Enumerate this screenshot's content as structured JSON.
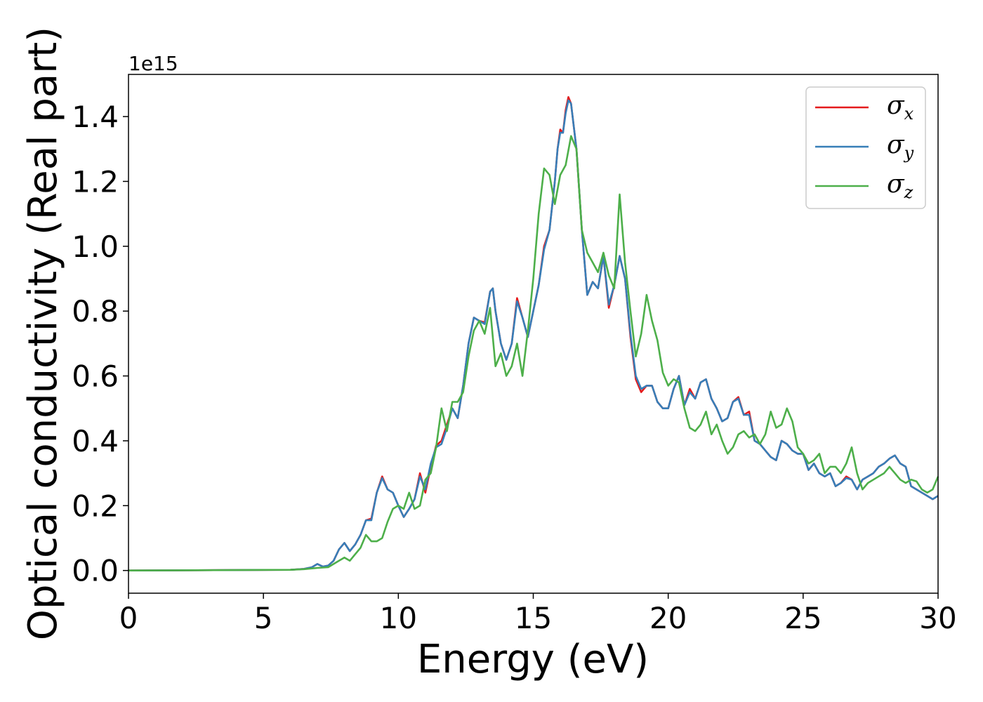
{
  "chart_data": {
    "type": "line",
    "xlabel": "Energy (eV)",
    "ylabel": "Optical conductivity (Real part)",
    "y_offset_label": "1e15",
    "xlim": [
      0,
      30
    ],
    "ylim": [
      -0.07,
      1.53
    ],
    "x_ticks": [
      0,
      5,
      10,
      15,
      20,
      25,
      30
    ],
    "x_tick_labels": [
      "0",
      "5",
      "10",
      "15",
      "20",
      "25",
      "30"
    ],
    "y_ticks": [
      0.0,
      0.2,
      0.4,
      0.6,
      0.8,
      1.0,
      1.2,
      1.4
    ],
    "y_tick_labels": [
      "0.0",
      "0.2",
      "0.4",
      "0.6",
      "0.8",
      "1.0",
      "1.2",
      "1.4"
    ],
    "grid": false,
    "legend": {
      "placement": "top-right",
      "entries": [
        {
          "symbol": "σ",
          "sub": "x",
          "color": "#e41a1c"
        },
        {
          "symbol": "σ",
          "sub": "y",
          "color": "#377eb8"
        },
        {
          "symbol": "σ",
          "sub": "z",
          "color": "#4daf4a"
        }
      ]
    },
    "series": [
      {
        "color": "#e41a1c",
        "x": [
          0,
          6,
          6.5,
          6.8,
          7.0,
          7.2,
          7.4,
          7.6,
          7.8,
          8.0,
          8.2,
          8.4,
          8.6,
          8.8,
          9.0,
          9.2,
          9.4,
          9.6,
          9.8,
          10.0,
          10.2,
          10.4,
          10.6,
          10.8,
          11.0,
          11.2,
          11.4,
          11.6,
          11.8,
          12.0,
          12.2,
          12.4,
          12.6,
          12.8,
          13.0,
          13.2,
          13.4,
          13.5,
          13.6,
          13.8,
          14.0,
          14.2,
          14.4,
          14.6,
          14.8,
          15.0,
          15.2,
          15.4,
          15.6,
          15.8,
          15.9,
          16.0,
          16.1,
          16.2,
          16.3,
          16.4,
          16.6,
          16.8,
          17.0,
          17.2,
          17.4,
          17.6,
          17.8,
          18.0,
          18.2,
          18.4,
          18.6,
          18.8,
          19.0,
          19.2,
          19.4,
          19.6,
          19.8,
          20.0,
          20.2,
          20.4,
          20.6,
          20.8,
          21.0,
          21.2,
          21.4,
          21.6,
          21.8,
          22.0,
          22.2,
          22.4,
          22.6,
          22.8,
          23.0,
          23.2,
          23.4,
          23.6,
          23.8,
          24.0,
          24.2,
          24.4,
          24.6,
          24.8,
          25.0,
          25.2,
          25.4,
          25.6,
          25.8,
          26.0,
          26.2,
          26.4,
          26.6,
          26.8,
          27.0,
          27.2,
          27.4,
          27.6,
          27.8,
          28.0,
          28.2,
          28.4,
          28.6,
          28.8,
          29.0,
          29.2,
          29.4,
          29.6,
          29.8,
          30.0
        ],
        "y": [
          0.0,
          0.002,
          0.005,
          0.01,
          0.02,
          0.012,
          0.015,
          0.03,
          0.065,
          0.085,
          0.06,
          0.08,
          0.11,
          0.155,
          0.16,
          0.24,
          0.29,
          0.25,
          0.24,
          0.2,
          0.165,
          0.19,
          0.22,
          0.3,
          0.24,
          0.32,
          0.385,
          0.4,
          0.45,
          0.5,
          0.47,
          0.57,
          0.7,
          0.78,
          0.77,
          0.765,
          0.86,
          0.87,
          0.8,
          0.7,
          0.65,
          0.7,
          0.84,
          0.78,
          0.72,
          0.8,
          0.88,
          1.0,
          1.05,
          1.2,
          1.3,
          1.36,
          1.35,
          1.42,
          1.46,
          1.44,
          1.3,
          1.05,
          0.85,
          0.89,
          0.87,
          0.97,
          0.81,
          0.88,
          0.97,
          0.9,
          0.72,
          0.59,
          0.55,
          0.57,
          0.57,
          0.52,
          0.5,
          0.5,
          0.56,
          0.6,
          0.51,
          0.56,
          0.53,
          0.58,
          0.59,
          0.53,
          0.5,
          0.46,
          0.47,
          0.52,
          0.535,
          0.48,
          0.49,
          0.4,
          0.39,
          0.37,
          0.35,
          0.34,
          0.4,
          0.39,
          0.37,
          0.36,
          0.36,
          0.31,
          0.33,
          0.3,
          0.29,
          0.3,
          0.26,
          0.27,
          0.29,
          0.28,
          0.25,
          0.28,
          0.29,
          0.3,
          0.32,
          0.33,
          0.345,
          0.355,
          0.33,
          0.32,
          0.26,
          0.25,
          0.24,
          0.23,
          0.22,
          0.23
        ]
      },
      {
        "color": "#377eb8",
        "x": [
          0,
          6,
          6.5,
          6.8,
          7.0,
          7.2,
          7.4,
          7.6,
          7.8,
          8.0,
          8.2,
          8.4,
          8.6,
          8.8,
          9.0,
          9.2,
          9.4,
          9.6,
          9.8,
          10.0,
          10.2,
          10.4,
          10.6,
          10.8,
          11.0,
          11.2,
          11.4,
          11.6,
          11.8,
          12.0,
          12.2,
          12.4,
          12.6,
          12.8,
          13.0,
          13.2,
          13.4,
          13.5,
          13.6,
          13.8,
          14.0,
          14.2,
          14.4,
          14.6,
          14.8,
          15.0,
          15.2,
          15.4,
          15.6,
          15.8,
          15.9,
          16.0,
          16.1,
          16.2,
          16.3,
          16.4,
          16.6,
          16.8,
          17.0,
          17.2,
          17.4,
          17.6,
          17.8,
          18.0,
          18.2,
          18.4,
          18.6,
          18.8,
          19.0,
          19.2,
          19.4,
          19.6,
          19.8,
          20.0,
          20.2,
          20.4,
          20.6,
          20.8,
          21.0,
          21.2,
          21.4,
          21.6,
          21.8,
          22.0,
          22.2,
          22.4,
          22.6,
          22.8,
          23.0,
          23.2,
          23.4,
          23.6,
          23.8,
          24.0,
          24.2,
          24.4,
          24.6,
          24.8,
          25.0,
          25.2,
          25.4,
          25.6,
          25.8,
          26.0,
          26.2,
          26.4,
          26.6,
          26.8,
          27.0,
          27.2,
          27.4,
          27.6,
          27.8,
          28.0,
          28.2,
          28.4,
          28.6,
          28.8,
          29.0,
          29.2,
          29.4,
          29.6,
          29.8,
          30.0
        ],
        "y": [
          0.0,
          0.002,
          0.005,
          0.01,
          0.02,
          0.012,
          0.015,
          0.03,
          0.065,
          0.085,
          0.06,
          0.08,
          0.11,
          0.155,
          0.155,
          0.24,
          0.285,
          0.25,
          0.24,
          0.2,
          0.165,
          0.19,
          0.22,
          0.29,
          0.25,
          0.33,
          0.38,
          0.39,
          0.44,
          0.5,
          0.47,
          0.57,
          0.7,
          0.78,
          0.77,
          0.76,
          0.86,
          0.87,
          0.8,
          0.7,
          0.65,
          0.7,
          0.83,
          0.78,
          0.72,
          0.8,
          0.88,
          0.99,
          1.05,
          1.2,
          1.3,
          1.35,
          1.35,
          1.41,
          1.45,
          1.44,
          1.3,
          1.05,
          0.85,
          0.89,
          0.87,
          0.97,
          0.82,
          0.88,
          0.97,
          0.9,
          0.73,
          0.6,
          0.56,
          0.57,
          0.57,
          0.52,
          0.5,
          0.5,
          0.56,
          0.6,
          0.51,
          0.55,
          0.53,
          0.58,
          0.59,
          0.53,
          0.5,
          0.46,
          0.47,
          0.52,
          0.53,
          0.48,
          0.48,
          0.4,
          0.39,
          0.37,
          0.35,
          0.34,
          0.4,
          0.39,
          0.37,
          0.36,
          0.36,
          0.31,
          0.33,
          0.3,
          0.29,
          0.3,
          0.26,
          0.27,
          0.285,
          0.28,
          0.25,
          0.28,
          0.29,
          0.3,
          0.32,
          0.33,
          0.345,
          0.355,
          0.33,
          0.32,
          0.26,
          0.25,
          0.24,
          0.23,
          0.22,
          0.23
        ]
      },
      {
        "color": "#4daf4a",
        "x": [
          0,
          6,
          6.5,
          7.0,
          7.4,
          7.8,
          8.0,
          8.2,
          8.4,
          8.6,
          8.8,
          9.0,
          9.2,
          9.4,
          9.6,
          9.8,
          10.0,
          10.2,
          10.4,
          10.6,
          10.8,
          11.0,
          11.2,
          11.4,
          11.6,
          11.8,
          12.0,
          12.2,
          12.4,
          12.6,
          12.8,
          13.0,
          13.2,
          13.4,
          13.6,
          13.8,
          14.0,
          14.2,
          14.4,
          14.6,
          14.8,
          15.0,
          15.2,
          15.4,
          15.6,
          15.8,
          16.0,
          16.2,
          16.4,
          16.6,
          16.8,
          17.0,
          17.2,
          17.4,
          17.6,
          17.8,
          18.0,
          18.2,
          18.4,
          18.6,
          18.8,
          19.0,
          19.2,
          19.4,
          19.6,
          19.8,
          20.0,
          20.2,
          20.4,
          20.6,
          20.8,
          21.0,
          21.2,
          21.4,
          21.6,
          21.8,
          22.0,
          22.2,
          22.4,
          22.6,
          22.8,
          23.0,
          23.2,
          23.4,
          23.6,
          23.8,
          24.0,
          24.2,
          24.4,
          24.6,
          24.8,
          25.0,
          25.2,
          25.4,
          25.6,
          25.8,
          26.0,
          26.2,
          26.4,
          26.6,
          26.8,
          27.0,
          27.2,
          27.4,
          27.6,
          27.8,
          28.0,
          28.2,
          28.4,
          28.6,
          28.8,
          29.0,
          29.2,
          29.4,
          29.6,
          29.8,
          30.0
        ],
        "y": [
          0.0,
          0.002,
          0.004,
          0.008,
          0.01,
          0.03,
          0.04,
          0.03,
          0.05,
          0.07,
          0.11,
          0.09,
          0.09,
          0.1,
          0.15,
          0.19,
          0.2,
          0.19,
          0.24,
          0.19,
          0.2,
          0.28,
          0.3,
          0.38,
          0.5,
          0.43,
          0.52,
          0.52,
          0.55,
          0.66,
          0.74,
          0.77,
          0.73,
          0.81,
          0.63,
          0.67,
          0.6,
          0.63,
          0.7,
          0.6,
          0.74,
          0.9,
          1.1,
          1.24,
          1.22,
          1.13,
          1.22,
          1.25,
          1.34,
          1.3,
          1.05,
          0.98,
          0.95,
          0.92,
          0.98,
          0.91,
          0.87,
          1.16,
          0.95,
          0.8,
          0.66,
          0.73,
          0.85,
          0.77,
          0.71,
          0.61,
          0.57,
          0.59,
          0.58,
          0.5,
          0.44,
          0.43,
          0.45,
          0.49,
          0.42,
          0.45,
          0.4,
          0.36,
          0.38,
          0.42,
          0.43,
          0.41,
          0.42,
          0.39,
          0.42,
          0.49,
          0.44,
          0.45,
          0.5,
          0.46,
          0.38,
          0.36,
          0.33,
          0.34,
          0.36,
          0.3,
          0.32,
          0.32,
          0.3,
          0.33,
          0.38,
          0.3,
          0.25,
          0.27,
          0.28,
          0.29,
          0.3,
          0.32,
          0.3,
          0.28,
          0.27,
          0.28,
          0.275,
          0.25,
          0.24,
          0.25,
          0.29
        ]
      }
    ]
  }
}
